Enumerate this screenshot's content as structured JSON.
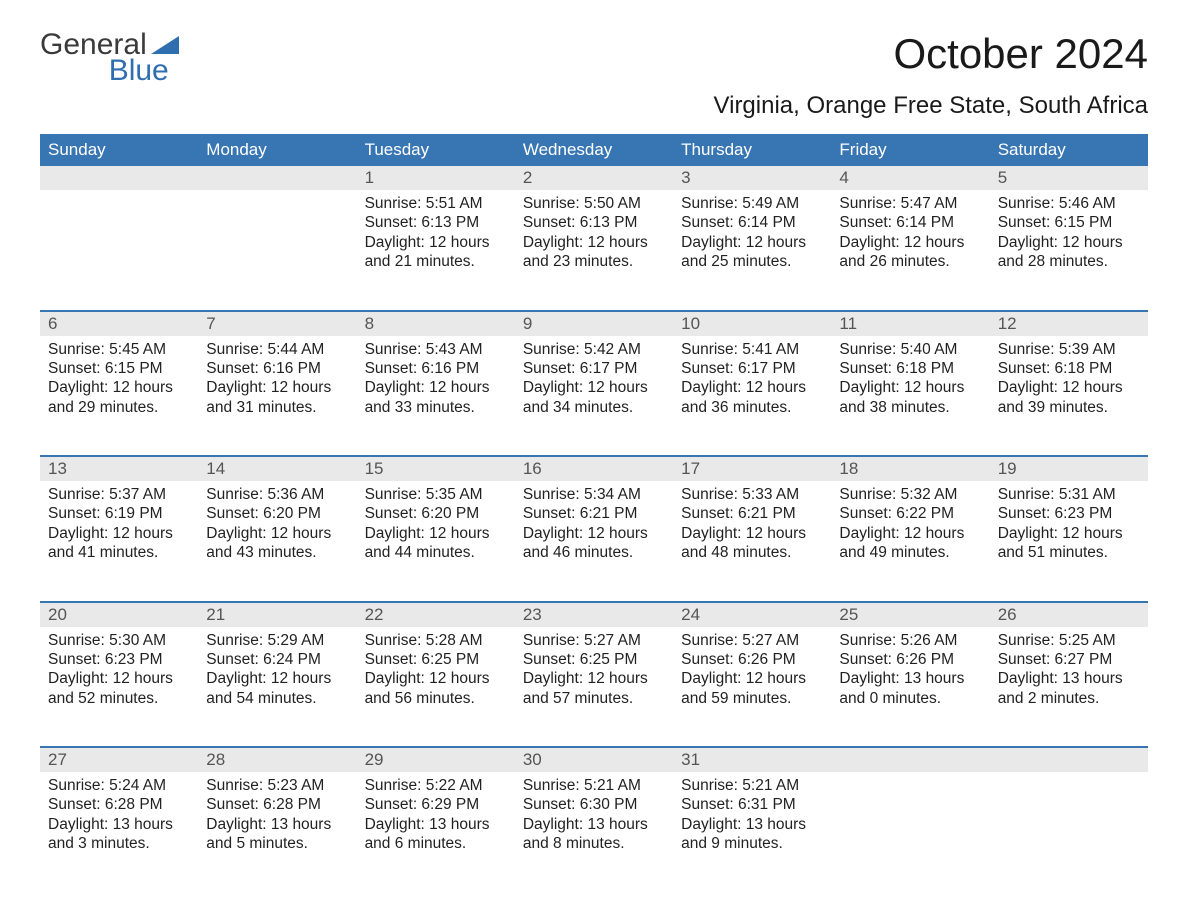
{
  "logo": {
    "line1": "General",
    "line2": "Blue",
    "shape_color": "#2f6fb0"
  },
  "title": "October 2024",
  "subtitle": "Virginia, Orange Free State, South Africa",
  "colors": {
    "header_bg": "#3876b3",
    "header_fg": "#ffffff",
    "daynum_bg": "#e9e9e9",
    "daynum_fg": "#555555",
    "body_bg": "#ffffff",
    "text": "#222222",
    "week_border": "#3876b3"
  },
  "typography": {
    "title_fontsize": 42,
    "subtitle_fontsize": 24,
    "dow_fontsize": 17,
    "daynum_fontsize": 17,
    "body_fontsize": 15.5
  },
  "days_of_week": [
    "Sunday",
    "Monday",
    "Tuesday",
    "Wednesday",
    "Thursday",
    "Friday",
    "Saturday"
  ],
  "calendar": {
    "type": "table",
    "columns": 7,
    "weeks": [
      [
        null,
        null,
        {
          "n": 1,
          "sunrise": "5:51 AM",
          "sunset": "6:13 PM",
          "dl1": "12 hours",
          "dl2": "and 21 minutes."
        },
        {
          "n": 2,
          "sunrise": "5:50 AM",
          "sunset": "6:13 PM",
          "dl1": "12 hours",
          "dl2": "and 23 minutes."
        },
        {
          "n": 3,
          "sunrise": "5:49 AM",
          "sunset": "6:14 PM",
          "dl1": "12 hours",
          "dl2": "and 25 minutes."
        },
        {
          "n": 4,
          "sunrise": "5:47 AM",
          "sunset": "6:14 PM",
          "dl1": "12 hours",
          "dl2": "and 26 minutes."
        },
        {
          "n": 5,
          "sunrise": "5:46 AM",
          "sunset": "6:15 PM",
          "dl1": "12 hours",
          "dl2": "and 28 minutes."
        }
      ],
      [
        {
          "n": 6,
          "sunrise": "5:45 AM",
          "sunset": "6:15 PM",
          "dl1": "12 hours",
          "dl2": "and 29 minutes."
        },
        {
          "n": 7,
          "sunrise": "5:44 AM",
          "sunset": "6:16 PM",
          "dl1": "12 hours",
          "dl2": "and 31 minutes."
        },
        {
          "n": 8,
          "sunrise": "5:43 AM",
          "sunset": "6:16 PM",
          "dl1": "12 hours",
          "dl2": "and 33 minutes."
        },
        {
          "n": 9,
          "sunrise": "5:42 AM",
          "sunset": "6:17 PM",
          "dl1": "12 hours",
          "dl2": "and 34 minutes."
        },
        {
          "n": 10,
          "sunrise": "5:41 AM",
          "sunset": "6:17 PM",
          "dl1": "12 hours",
          "dl2": "and 36 minutes."
        },
        {
          "n": 11,
          "sunrise": "5:40 AM",
          "sunset": "6:18 PM",
          "dl1": "12 hours",
          "dl2": "and 38 minutes."
        },
        {
          "n": 12,
          "sunrise": "5:39 AM",
          "sunset": "6:18 PM",
          "dl1": "12 hours",
          "dl2": "and 39 minutes."
        }
      ],
      [
        {
          "n": 13,
          "sunrise": "5:37 AM",
          "sunset": "6:19 PM",
          "dl1": "12 hours",
          "dl2": "and 41 minutes."
        },
        {
          "n": 14,
          "sunrise": "5:36 AM",
          "sunset": "6:20 PM",
          "dl1": "12 hours",
          "dl2": "and 43 minutes."
        },
        {
          "n": 15,
          "sunrise": "5:35 AM",
          "sunset": "6:20 PM",
          "dl1": "12 hours",
          "dl2": "and 44 minutes."
        },
        {
          "n": 16,
          "sunrise": "5:34 AM",
          "sunset": "6:21 PM",
          "dl1": "12 hours",
          "dl2": "and 46 minutes."
        },
        {
          "n": 17,
          "sunrise": "5:33 AM",
          "sunset": "6:21 PM",
          "dl1": "12 hours",
          "dl2": "and 48 minutes."
        },
        {
          "n": 18,
          "sunrise": "5:32 AM",
          "sunset": "6:22 PM",
          "dl1": "12 hours",
          "dl2": "and 49 minutes."
        },
        {
          "n": 19,
          "sunrise": "5:31 AM",
          "sunset": "6:23 PM",
          "dl1": "12 hours",
          "dl2": "and 51 minutes."
        }
      ],
      [
        {
          "n": 20,
          "sunrise": "5:30 AM",
          "sunset": "6:23 PM",
          "dl1": "12 hours",
          "dl2": "and 52 minutes."
        },
        {
          "n": 21,
          "sunrise": "5:29 AM",
          "sunset": "6:24 PM",
          "dl1": "12 hours",
          "dl2": "and 54 minutes."
        },
        {
          "n": 22,
          "sunrise": "5:28 AM",
          "sunset": "6:25 PM",
          "dl1": "12 hours",
          "dl2": "and 56 minutes."
        },
        {
          "n": 23,
          "sunrise": "5:27 AM",
          "sunset": "6:25 PM",
          "dl1": "12 hours",
          "dl2": "and 57 minutes."
        },
        {
          "n": 24,
          "sunrise": "5:27 AM",
          "sunset": "6:26 PM",
          "dl1": "12 hours",
          "dl2": "and 59 minutes."
        },
        {
          "n": 25,
          "sunrise": "5:26 AM",
          "sunset": "6:26 PM",
          "dl1": "13 hours",
          "dl2": "and 0 minutes."
        },
        {
          "n": 26,
          "sunrise": "5:25 AM",
          "sunset": "6:27 PM",
          "dl1": "13 hours",
          "dl2": "and 2 minutes."
        }
      ],
      [
        {
          "n": 27,
          "sunrise": "5:24 AM",
          "sunset": "6:28 PM",
          "dl1": "13 hours",
          "dl2": "and 3 minutes."
        },
        {
          "n": 28,
          "sunrise": "5:23 AM",
          "sunset": "6:28 PM",
          "dl1": "13 hours",
          "dl2": "and 5 minutes."
        },
        {
          "n": 29,
          "sunrise": "5:22 AM",
          "sunset": "6:29 PM",
          "dl1": "13 hours",
          "dl2": "and 6 minutes."
        },
        {
          "n": 30,
          "sunrise": "5:21 AM",
          "sunset": "6:30 PM",
          "dl1": "13 hours",
          "dl2": "and 8 minutes."
        },
        {
          "n": 31,
          "sunrise": "5:21 AM",
          "sunset": "6:31 PM",
          "dl1": "13 hours",
          "dl2": "and 9 minutes."
        },
        null,
        null
      ]
    ]
  },
  "labels": {
    "sunrise_prefix": "Sunrise: ",
    "sunset_prefix": "Sunset: ",
    "daylight_prefix": "Daylight: "
  }
}
